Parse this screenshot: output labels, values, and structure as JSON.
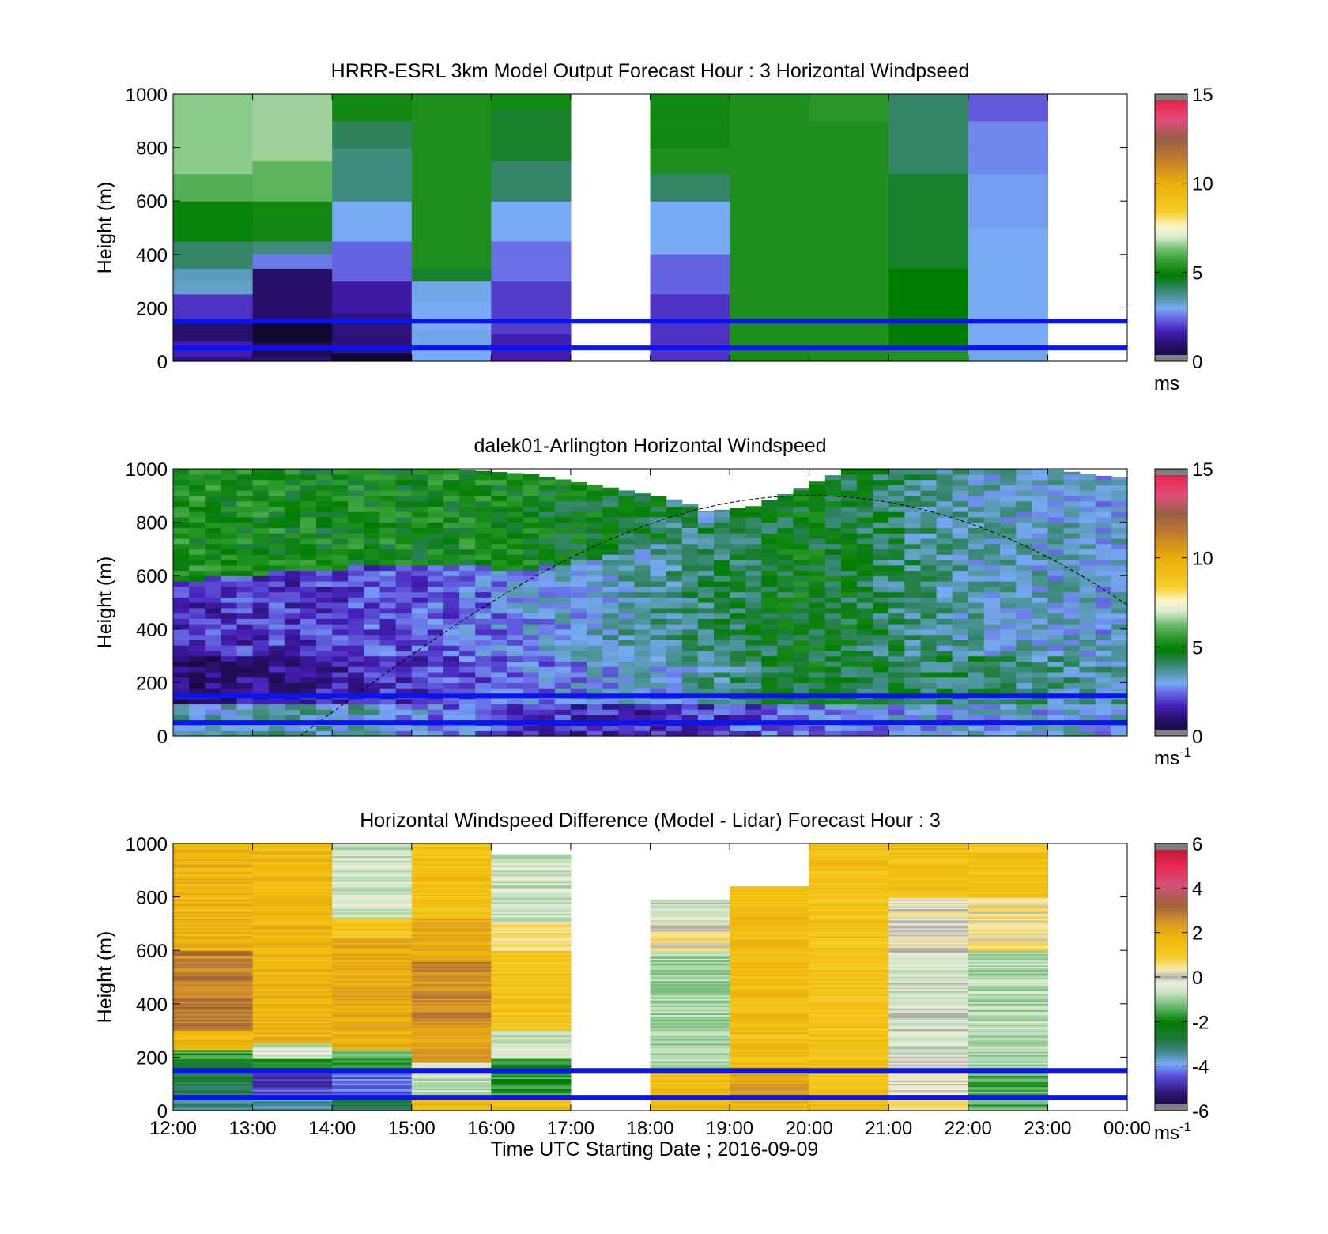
{
  "figure": {
    "xlabel": "Time UTC  Starting Date ; 2016-09-09"
  },
  "chart_data": [
    {
      "type": "heatmap",
      "title": "HRRR-ESRL 3km Model Output   Forecast Hour : 3 Horizontal Windpseed",
      "ylabel": "Height (m)",
      "ylim": [
        0,
        1000
      ],
      "yticks": [
        "0",
        "200",
        "400",
        "600",
        "800",
        "1000"
      ],
      "x_hours": [
        "12:00",
        "13:00",
        "14:00",
        "15:00",
        "16:00",
        "17:00",
        "18:00",
        "19:00",
        "20:00",
        "21:00",
        "22:00",
        "23:00",
        "00:00"
      ],
      "xtick_labels_shown": false,
      "colorbar": {
        "range": [
          0,
          15
        ],
        "ticks": [
          "0",
          "5",
          "10",
          "15"
        ],
        "unit": "ms",
        "unit_sup": ""
      },
      "reference_lines_m": [
        50,
        150
      ],
      "cells": [
        {
          "hour": 12,
          "profile": [
            [
              0,
              20,
              1.2
            ],
            [
              20,
              80,
              1.6
            ],
            [
              80,
              150,
              1.0
            ],
            [
              150,
              250,
              1.9
            ],
            [
              250,
              300,
              3.3
            ],
            [
              300,
              350,
              3.4
            ],
            [
              350,
              450,
              4.1
            ],
            [
              450,
              600,
              5.0
            ],
            [
              600,
              700,
              6.0
            ],
            [
              700,
              1000,
              6.5
            ]
          ]
        },
        {
          "hour": 13,
          "profile": [
            [
              0,
              20,
              1.1
            ],
            [
              20,
              70,
              0.6
            ],
            [
              70,
              110,
              0.0
            ],
            [
              110,
              150,
              0.0
            ],
            [
              150,
              350,
              0.9
            ],
            [
              350,
              400,
              2.6
            ],
            [
              400,
              450,
              3.9
            ],
            [
              450,
              600,
              5.1
            ],
            [
              600,
              750,
              6.1
            ],
            [
              750,
              1000,
              6.6
            ]
          ]
        },
        {
          "hour": 14,
          "profile": [
            [
              0,
              30,
              0.0
            ],
            [
              30,
              180,
              1.1
            ],
            [
              180,
              300,
              1.5
            ],
            [
              300,
              450,
              2.4
            ],
            [
              450,
              600,
              3.0
            ],
            [
              600,
              800,
              3.9
            ],
            [
              800,
              900,
              4.2
            ],
            [
              900,
              1000,
              5.1
            ]
          ]
        },
        {
          "hour": 15,
          "profile": [
            [
              0,
              40,
              3.0
            ],
            [
              40,
              120,
              3.1
            ],
            [
              120,
              220,
              3.0
            ],
            [
              220,
              300,
              3.1
            ],
            [
              300,
              350,
              4.5
            ],
            [
              350,
              1000,
              5.3
            ]
          ]
        },
        {
          "hour": 16,
          "profile": [
            [
              0,
              100,
              1.6
            ],
            [
              100,
              300,
              2.0
            ],
            [
              300,
              450,
              2.5
            ],
            [
              450,
              600,
              3.0
            ],
            [
              600,
              750,
              4.1
            ],
            [
              750,
              950,
              4.5
            ],
            [
              950,
              1000,
              5.1
            ]
          ]
        },
        {
          "hour": 18,
          "profile": [
            [
              0,
              250,
              1.9
            ],
            [
              250,
              400,
              2.4
            ],
            [
              400,
              600,
              3.0
            ],
            [
              600,
              700,
              4.1
            ],
            [
              700,
              800,
              5.3
            ],
            [
              800,
              1000,
              5.1
            ]
          ]
        },
        {
          "hour": 19,
          "profile": [
            [
              0,
              40,
              5.2
            ],
            [
              40,
              1000,
              5.3
            ]
          ]
        },
        {
          "hour": 20,
          "profile": [
            [
              0,
              40,
              5.3
            ],
            [
              40,
              900,
              5.3
            ],
            [
              900,
              1000,
              5.5
            ]
          ]
        },
        {
          "hour": 21,
          "profile": [
            [
              0,
              60,
              5.4
            ],
            [
              60,
              350,
              4.8
            ],
            [
              350,
              700,
              4.5
            ],
            [
              700,
              1000,
              4.1
            ]
          ]
        },
        {
          "hour": 22,
          "profile": [
            [
              0,
              50,
              3.1
            ],
            [
              50,
              500,
              3.0
            ],
            [
              500,
              700,
              2.9
            ],
            [
              700,
              900,
              2.7
            ],
            [
              900,
              1000,
              2.3
            ]
          ]
        }
      ]
    },
    {
      "type": "heatmap",
      "title": "dalek01-Arlington  Horizontal Windspeed",
      "ylabel": "Height (m)",
      "ylim": [
        0,
        1000
      ],
      "yticks": [
        "0",
        "200",
        "400",
        "600",
        "800",
        "1000"
      ],
      "x_hours": [
        "12:00",
        "13:00",
        "14:00",
        "15:00",
        "16:00",
        "17:00",
        "18:00",
        "19:00",
        "20:00",
        "21:00",
        "22:00",
        "23:00",
        "00:00"
      ],
      "xtick_labels_shown": false,
      "colorbar": {
        "range": [
          0,
          15
        ],
        "ticks": [
          "0",
          "5",
          "10",
          "15"
        ],
        "unit": "ms",
        "unit_sup": "-1"
      },
      "reference_lines_m": [
        50,
        150
      ],
      "lidar_top_m": [
        [
          12.0,
          1000
        ],
        [
          15.5,
          1000
        ],
        [
          16.5,
          980
        ],
        [
          17.5,
          930
        ],
        [
          18.4,
          880
        ],
        [
          18.7,
          840
        ],
        [
          19.3,
          860
        ],
        [
          20.0,
          940
        ],
        [
          20.5,
          1000
        ],
        [
          23.0,
          1000
        ],
        [
          23.8,
          970
        ]
      ],
      "lidar_end_hour": 23.85,
      "sun_curve": {
        "start_hour": 13.6,
        "peak_hour": 20.0,
        "peak_height_m": 900,
        "end_hour": 24.0,
        "end_height_m": 490
      },
      "regime": [
        {
          "hour": 12,
          "surface": 3.2,
          "low": 1.0,
          "mid": 1.8,
          "upper": 5.2
        },
        {
          "hour": 14,
          "surface": 3.6,
          "low": 1.5,
          "mid": 2.0,
          "upper": 5.0
        },
        {
          "hour": 16,
          "surface": 2.2,
          "low": 2.4,
          "mid": 2.6,
          "upper": 5.1
        },
        {
          "hour": 18,
          "surface": 1.6,
          "low": 3.1,
          "mid": 3.6,
          "upper": 4.5
        },
        {
          "hour": 20,
          "surface": 2.6,
          "low": 4.6,
          "mid": 4.8,
          "upper": 2.0
        },
        {
          "hour": 22,
          "surface": 3.0,
          "low": 4.0,
          "mid": 3.4,
          "upper": 1.8
        },
        {
          "hour": 24,
          "surface": 3.1,
          "low": 3.5,
          "mid": 3.1,
          "upper": 2.2
        }
      ],
      "mid_top_m": [
        [
          12,
          580
        ],
        [
          15,
          650
        ],
        [
          16.5,
          620
        ],
        [
          18,
          700
        ],
        [
          20,
          1000
        ],
        [
          24,
          1000
        ]
      ]
    },
    {
      "type": "heatmap",
      "title": "Horizontal Windspeed Difference (Model - Lidar) Forecast Hour : 3",
      "ylabel": "Height (m)",
      "ylim": [
        0,
        1000
      ],
      "yticks": [
        "0",
        "200",
        "400",
        "600",
        "800",
        "1000"
      ],
      "x_hours": [
        "12:00",
        "13:00",
        "14:00",
        "15:00",
        "16:00",
        "17:00",
        "18:00",
        "19:00",
        "20:00",
        "21:00",
        "22:00",
        "23:00",
        "00:00"
      ],
      "xtick_labels_shown": true,
      "colorbar": {
        "range": [
          -6,
          6
        ],
        "ticks": [
          "-6",
          "-4",
          "-2",
          "0",
          "2",
          "4",
          "6"
        ],
        "unit": "ms",
        "unit_sup": "-1"
      },
      "reference_lines_m": [
        50,
        150
      ],
      "cells": [
        {
          "hour": 12,
          "top_m": 1000,
          "profile": [
            [
              0,
              40,
              -3.2
            ],
            [
              40,
              180,
              -2.8
            ],
            [
              180,
              230,
              -1.6
            ],
            [
              230,
              300,
              1.6
            ],
            [
              300,
              600,
              2.8
            ],
            [
              600,
              1000,
              1.8
            ]
          ]
        },
        {
          "hour": 13,
          "top_m": 1000,
          "profile": [
            [
              0,
              40,
              -3.5
            ],
            [
              40,
              150,
              -4.6
            ],
            [
              150,
              200,
              -2.0
            ],
            [
              200,
              250,
              -0.6
            ],
            [
              250,
              700,
              1.8
            ],
            [
              700,
              1000,
              1.6
            ]
          ]
        },
        {
          "hour": 14,
          "top_m": 1000,
          "profile": [
            [
              0,
              60,
              -3.0
            ],
            [
              60,
              150,
              -4.2
            ],
            [
              150,
              230,
              -1.5
            ],
            [
              230,
              300,
              1.8
            ],
            [
              300,
              650,
              2.0
            ],
            [
              650,
              720,
              1.2
            ],
            [
              720,
              1000,
              -0.6
            ]
          ]
        },
        {
          "hour": 15,
          "top_m": 1000,
          "profile": [
            [
              0,
              50,
              1.5
            ],
            [
              50,
              180,
              -0.6
            ],
            [
              180,
              320,
              2.2
            ],
            [
              320,
              560,
              2.6
            ],
            [
              560,
              720,
              2.0
            ],
            [
              720,
              1000,
              1.4
            ]
          ]
        },
        {
          "hour": 16,
          "top_m": 960,
          "profile": [
            [
              0,
              60,
              1.4
            ],
            [
              60,
              200,
              -1.8
            ],
            [
              200,
              300,
              -0.6
            ],
            [
              300,
              600,
              1.2
            ],
            [
              600,
              700,
              0.7
            ],
            [
              700,
              960,
              -0.6
            ]
          ]
        },
        {
          "hour": 18,
          "top_m": 790,
          "profile": [
            [
              0,
              160,
              1.6
            ],
            [
              160,
              600,
              -0.9
            ],
            [
              600,
              700,
              0.4
            ],
            [
              700,
              790,
              -0.4
            ]
          ]
        },
        {
          "hour": 19,
          "top_m": 840,
          "profile": [
            [
              0,
              40,
              1.8
            ],
            [
              40,
              140,
              2.2
            ],
            [
              140,
              840,
              1.5
            ]
          ]
        },
        {
          "hour": 20,
          "top_m": 1000,
          "profile": [
            [
              0,
              60,
              1.6
            ],
            [
              60,
              1000,
              1.3
            ]
          ]
        },
        {
          "hour": 21,
          "top_m": 1000,
          "profile": [
            [
              0,
              60,
              0.4
            ],
            [
              60,
              200,
              0.0
            ],
            [
              200,
              600,
              -0.4
            ],
            [
              600,
              800,
              0.2
            ],
            [
              800,
              1000,
              1.4
            ]
          ]
        },
        {
          "hour": 22,
          "top_m": 1000,
          "profile": [
            [
              0,
              150,
              -1.4
            ],
            [
              150,
              600,
              -0.8
            ],
            [
              600,
              800,
              0.5
            ],
            [
              800,
              1000,
              1.3
            ]
          ]
        }
      ]
    }
  ]
}
